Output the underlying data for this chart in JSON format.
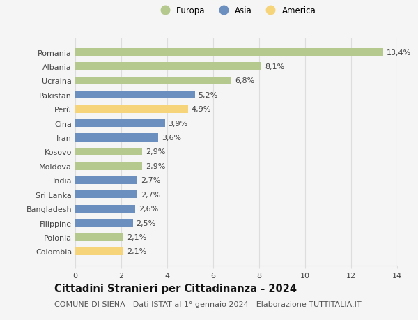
{
  "categories": [
    "Romania",
    "Albania",
    "Ucraina",
    "Pakistan",
    "Perù",
    "Cina",
    "Iran",
    "Kosovo",
    "Moldova",
    "India",
    "Sri Lanka",
    "Bangladesh",
    "Filippine",
    "Polonia",
    "Colombia"
  ],
  "values": [
    13.4,
    8.1,
    6.8,
    5.2,
    4.9,
    3.9,
    3.6,
    2.9,
    2.9,
    2.7,
    2.7,
    2.6,
    2.5,
    2.1,
    2.1
  ],
  "labels": [
    "13,4%",
    "8,1%",
    "6,8%",
    "5,2%",
    "4,9%",
    "3,9%",
    "3,6%",
    "2,9%",
    "2,9%",
    "2,7%",
    "2,7%",
    "2,6%",
    "2,5%",
    "2,1%",
    "2,1%"
  ],
  "continent": [
    "Europa",
    "Europa",
    "Europa",
    "Asia",
    "America",
    "Asia",
    "Asia",
    "Europa",
    "Europa",
    "Asia",
    "Asia",
    "Asia",
    "Asia",
    "Europa",
    "America"
  ],
  "colors": {
    "Europa": "#b5c98e",
    "Asia": "#6b8fbf",
    "America": "#f5d47a"
  },
  "legend_order": [
    "Europa",
    "Asia",
    "America"
  ],
  "xlim": [
    0,
    14
  ],
  "xticks": [
    0,
    2,
    4,
    6,
    8,
    10,
    12,
    14
  ],
  "title": "Cittadini Stranieri per Cittadinanza - 2024",
  "subtitle": "COMUNE DI SIENA - Dati ISTAT al 1° gennaio 2024 - Elaborazione TUTTITALIA.IT",
  "background_color": "#f5f5f5",
  "grid_color": "#dddddd",
  "bar_height": 0.55,
  "label_fontsize": 8,
  "bar_label_fontsize": 8,
  "title_fontsize": 10.5,
  "subtitle_fontsize": 8,
  "legend_fontsize": 8.5
}
